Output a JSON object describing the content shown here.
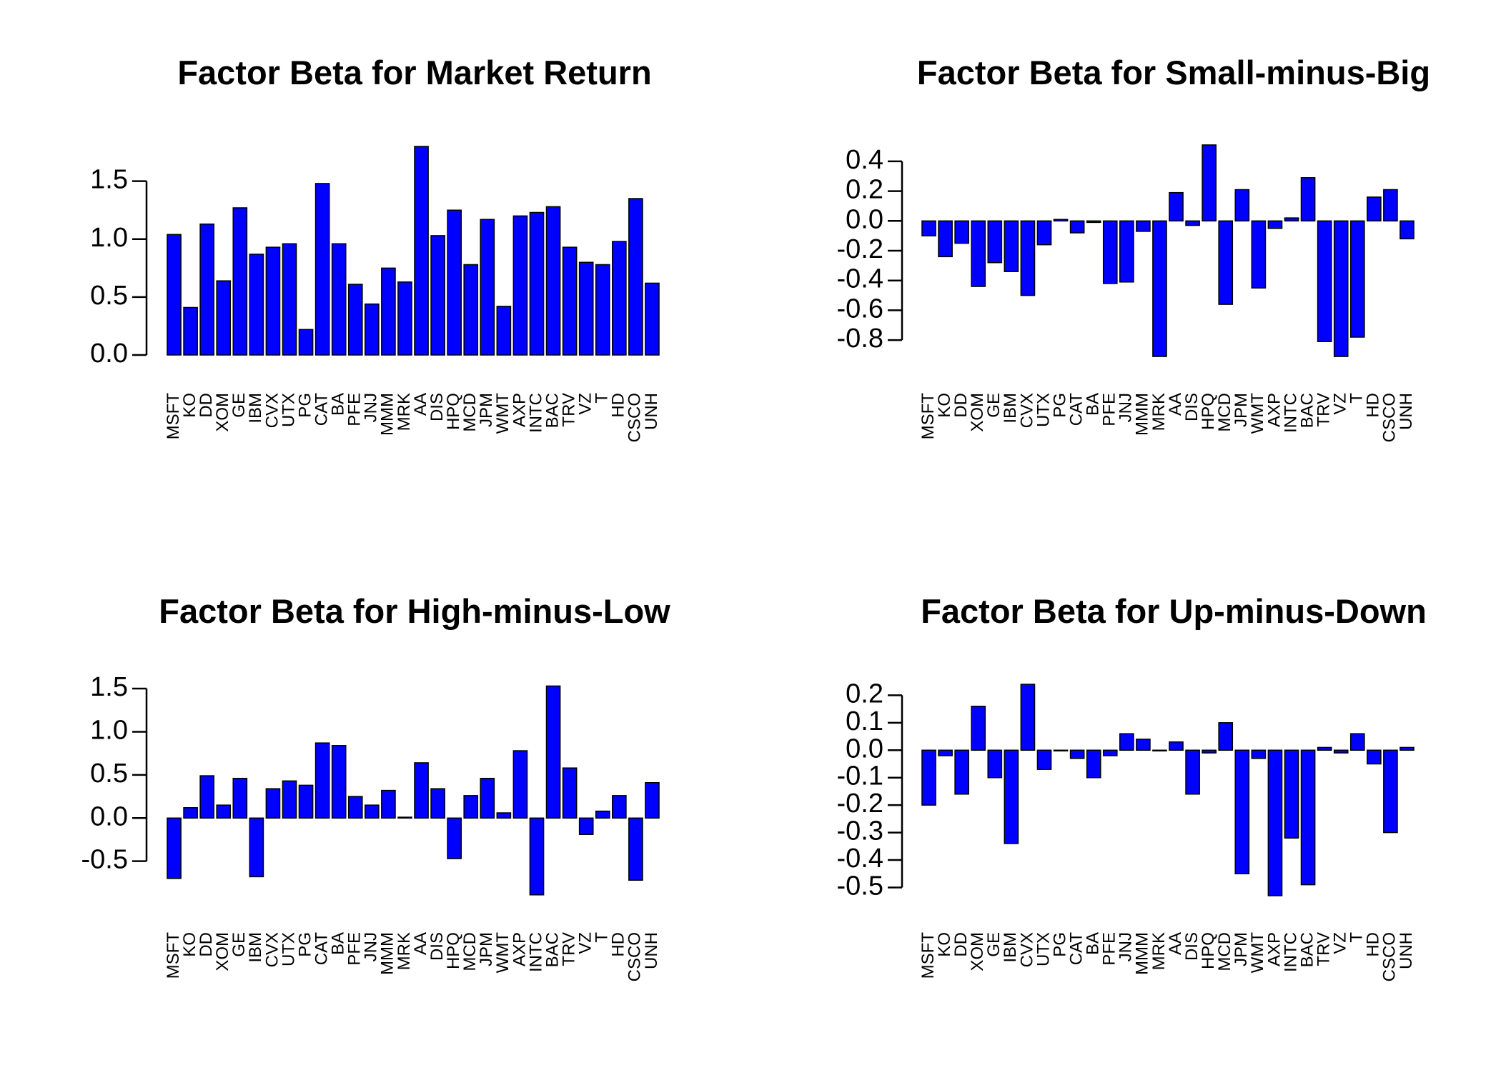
{
  "colors": {
    "bar_fill": "#0000ff",
    "bar_stroke": "#000000",
    "axis": "#000000"
  },
  "chart_data": [
    {
      "type": "bar",
      "title": "Factor Beta for Market Return",
      "categories": [
        "MSFT",
        "KO",
        "DD",
        "XOM",
        "GE",
        "IBM",
        "CVX",
        "UTX",
        "PG",
        "CAT",
        "BA",
        "PFE",
        "JNJ",
        "MMM",
        "MRK",
        "AA",
        "DIS",
        "HPQ",
        "MCD",
        "JPM",
        "WMT",
        "AXP",
        "INTC",
        "BAC",
        "TRV",
        "VZ",
        "T",
        "HD",
        "CSCO",
        "UNH"
      ],
      "values": [
        1.04,
        0.41,
        1.13,
        0.64,
        1.27,
        0.87,
        0.93,
        0.96,
        0.22,
        1.48,
        0.96,
        0.61,
        0.44,
        0.75,
        0.63,
        1.8,
        1.03,
        1.25,
        0.78,
        1.17,
        0.42,
        1.2,
        1.23,
        1.28,
        0.93,
        0.8,
        0.78,
        0.98,
        1.35,
        0.62
      ],
      "ylim": [
        0,
        1.8
      ],
      "yticks": [
        {
          "v": 0.0,
          "label": "0.0"
        },
        {
          "v": 0.5,
          "label": "0.5"
        },
        {
          "v": 1.0,
          "label": "1.0"
        },
        {
          "v": 1.5,
          "label": "1.5"
        }
      ],
      "xlabel": "",
      "ylabel": "",
      "grid": false,
      "legend": "none"
    },
    {
      "type": "bar",
      "title": "Factor Beta for Small-minus-Big",
      "categories": [
        "MSFT",
        "KO",
        "DD",
        "XOM",
        "GE",
        "IBM",
        "CVX",
        "UTX",
        "PG",
        "CAT",
        "BA",
        "PFE",
        "JNJ",
        "MMM",
        "MRK",
        "AA",
        "DIS",
        "HPQ",
        "MCD",
        "JPM",
        "WMT",
        "AXP",
        "INTC",
        "BAC",
        "TRV",
        "VZ",
        "T",
        "HD",
        "CSCO",
        "UNH"
      ],
      "values": [
        -0.1,
        -0.24,
        -0.15,
        -0.44,
        -0.28,
        -0.34,
        -0.5,
        -0.16,
        0.01,
        -0.08,
        -0.01,
        -0.42,
        -0.41,
        -0.07,
        -0.91,
        0.19,
        -0.03,
        0.51,
        -0.56,
        0.21,
        -0.45,
        -0.05,
        0.02,
        0.29,
        -0.81,
        -0.91,
        -0.78,
        0.16,
        0.21,
        -0.12
      ],
      "ylim": [
        -0.9,
        0.5
      ],
      "yticks": [
        {
          "v": -0.8,
          "label": "-0.8"
        },
        {
          "v": -0.6,
          "label": "-0.6"
        },
        {
          "v": -0.4,
          "label": "-0.4"
        },
        {
          "v": -0.2,
          "label": "-0.2"
        },
        {
          "v": 0.0,
          "label": "0.0"
        },
        {
          "v": 0.2,
          "label": "0.2"
        },
        {
          "v": 0.4,
          "label": "0.4"
        }
      ],
      "xlabel": "",
      "ylabel": "",
      "grid": false,
      "legend": "none"
    },
    {
      "type": "bar",
      "title": "Factor Beta for High-minus-Low",
      "categories": [
        "MSFT",
        "KO",
        "DD",
        "XOM",
        "GE",
        "IBM",
        "CVX",
        "UTX",
        "PG",
        "CAT",
        "BA",
        "PFE",
        "JNJ",
        "MMM",
        "MRK",
        "AA",
        "DIS",
        "HPQ",
        "MCD",
        "JPM",
        "WMT",
        "AXP",
        "INTC",
        "BAC",
        "TRV",
        "VZ",
        "T",
        "HD",
        "CSCO",
        "UNH"
      ],
      "values": [
        -0.7,
        0.12,
        0.49,
        0.15,
        0.46,
        -0.68,
        0.34,
        0.43,
        0.38,
        0.87,
        0.84,
        0.25,
        0.15,
        0.32,
        0.01,
        0.64,
        0.34,
        -0.47,
        0.26,
        0.46,
        0.06,
        0.78,
        -0.89,
        1.53,
        0.58,
        -0.19,
        0.08,
        0.26,
        -0.72,
        0.41
      ],
      "ylim": [
        -0.9,
        1.55
      ],
      "yticks": [
        {
          "v": -0.5,
          "label": "-0.5"
        },
        {
          "v": 0.0,
          "label": "0.0"
        },
        {
          "v": 0.5,
          "label": "0.5"
        },
        {
          "v": 1.0,
          "label": "1.0"
        },
        {
          "v": 1.5,
          "label": "1.5"
        }
      ],
      "xlabel": "",
      "ylabel": "",
      "grid": false,
      "legend": "none"
    },
    {
      "type": "bar",
      "title": "Factor Beta for Up-minus-Down",
      "categories": [
        "MSFT",
        "KO",
        "DD",
        "XOM",
        "GE",
        "IBM",
        "CVX",
        "UTX",
        "PG",
        "CAT",
        "BA",
        "PFE",
        "JNJ",
        "MMM",
        "MRK",
        "AA",
        "DIS",
        "HPQ",
        "MCD",
        "JPM",
        "WMT",
        "AXP",
        "INTC",
        "BAC",
        "TRV",
        "VZ",
        "T",
        "HD",
        "CSCO",
        "UNH"
      ],
      "values": [
        -0.2,
        -0.02,
        -0.16,
        0.16,
        -0.1,
        -0.34,
        0.24,
        -0.07,
        0.0,
        -0.03,
        -0.1,
        -0.02,
        0.06,
        0.04,
        0.0,
        0.03,
        -0.16,
        -0.01,
        0.1,
        -0.45,
        -0.03,
        -0.53,
        -0.32,
        -0.49,
        0.01,
        -0.01,
        0.06,
        -0.05,
        -0.3,
        0.01
      ],
      "ylim": [
        -0.53,
        0.24
      ],
      "yticks": [
        {
          "v": -0.5,
          "label": "-0.5"
        },
        {
          "v": -0.4,
          "label": "-0.4"
        },
        {
          "v": -0.3,
          "label": "-0.3"
        },
        {
          "v": -0.2,
          "label": "-0.2"
        },
        {
          "v": -0.1,
          "label": "-0.1"
        },
        {
          "v": 0.0,
          "label": "0.0"
        },
        {
          "v": 0.1,
          "label": "0.1"
        },
        {
          "v": 0.2,
          "label": "0.2"
        }
      ],
      "xlabel": "",
      "ylabel": "",
      "grid": false,
      "legend": "none"
    }
  ]
}
